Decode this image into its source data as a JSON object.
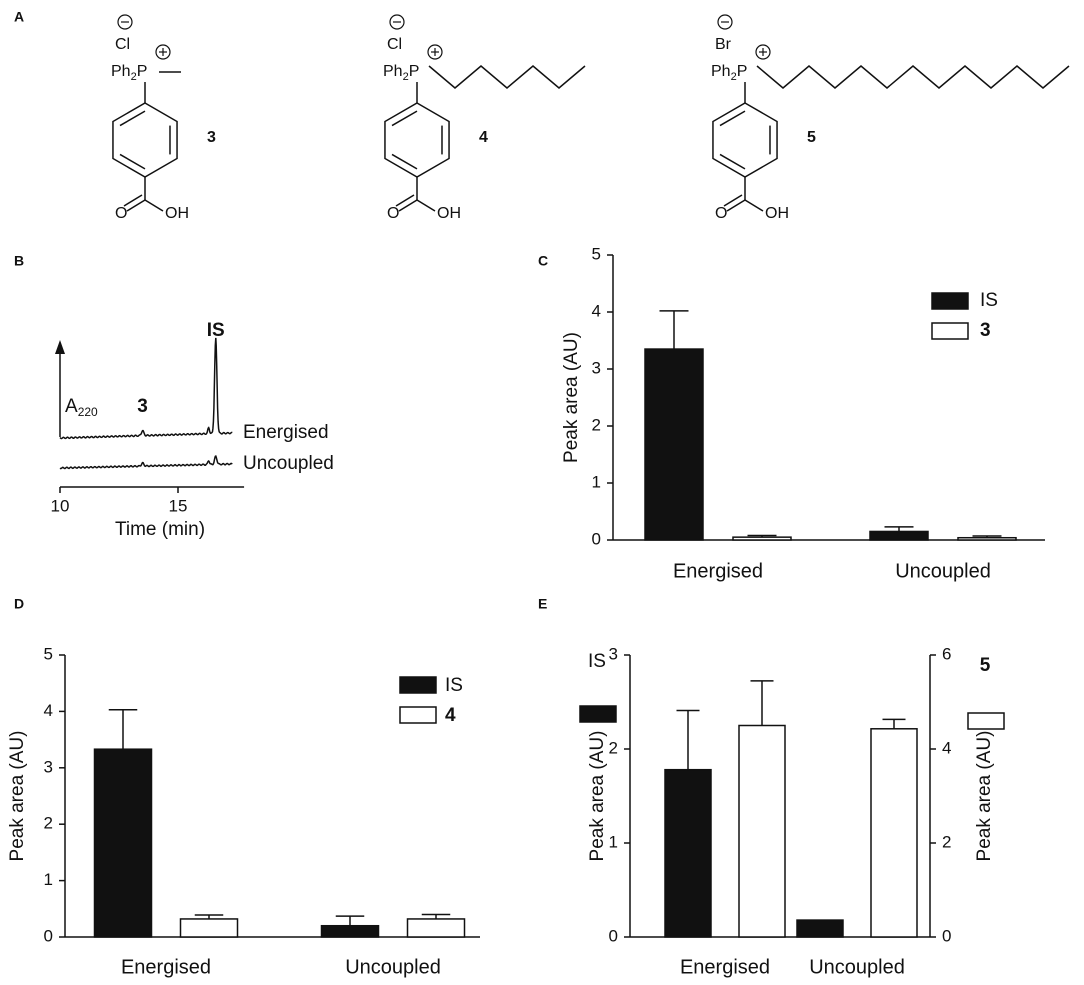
{
  "figure": {
    "panel_labels": [
      "A",
      "B",
      "C",
      "D",
      "E"
    ]
  },
  "structures": [
    {
      "anion": "Cl",
      "cation": [
        "Ph",
        "2",
        "P"
      ],
      "carbonyl": "O",
      "hydroxyl": "OH",
      "label": "3"
    },
    {
      "anion": "Cl",
      "cation": [
        "Ph",
        "2",
        "P"
      ],
      "carbonyl": "O",
      "hydroxyl": "OH",
      "label": "4"
    },
    {
      "anion": "Br",
      "cation": [
        "Ph",
        "2",
        "P"
      ],
      "carbonyl": "O",
      "hydroxyl": "OH",
      "label": "5"
    }
  ],
  "chart_data": [
    {
      "type": "chromatogram",
      "xlabel": "Time (min)",
      "ylabel": [
        "A",
        "220"
      ],
      "xlim": [
        10,
        17.8
      ],
      "xticks": [
        10,
        15
      ],
      "peaks": [
        {
          "label": "3",
          "x": 13.5
        },
        {
          "label": "IS",
          "x": 16.6
        }
      ],
      "series": [
        {
          "name": "Energised"
        },
        {
          "name": "Uncoupled"
        }
      ]
    },
    {
      "type": "bar",
      "ylabel": "Peak area (AU)",
      "categories": [
        "Energised",
        "Uncoupled"
      ],
      "ylim": [
        0,
        5
      ],
      "yticks": [
        0,
        1,
        2,
        3,
        4,
        5
      ],
      "series": [
        {
          "name": "IS",
          "color": "#111111",
          "values": [
            3.35,
            0.15
          ],
          "errors": [
            0.67,
            0.08
          ]
        },
        {
          "name": "3",
          "color": "#ffffff",
          "values": [
            0.05,
            0.04
          ],
          "errors": [
            0.03,
            0.03
          ]
        }
      ]
    },
    {
      "type": "bar",
      "ylabel": "Peak area (AU)",
      "categories": [
        "Energised",
        "Uncoupled"
      ],
      "ylim": [
        0,
        5
      ],
      "yticks": [
        0,
        1,
        2,
        3,
        4,
        5
      ],
      "series": [
        {
          "name": "IS",
          "color": "#111111",
          "values": [
            3.33,
            0.2
          ],
          "errors": [
            0.7,
            0.17
          ]
        },
        {
          "name": "4",
          "color": "#ffffff",
          "values": [
            0.32,
            0.32
          ],
          "errors": [
            0.07,
            0.08
          ]
        }
      ]
    },
    {
      "type": "bar",
      "ylabel": "Peak area (AU)",
      "y2label": "Peak area (AU)",
      "categories": [
        "Energised",
        "Uncoupled"
      ],
      "ylim": [
        0,
        3
      ],
      "yticks": [
        0,
        1,
        2,
        3
      ],
      "y2lim": [
        0,
        6
      ],
      "y2ticks": [
        0,
        2,
        4,
        6
      ],
      "series": [
        {
          "name": "IS",
          "color": "#111111",
          "values": [
            1.78,
            0.18
          ],
          "errors": [
            0.63,
            null
          ]
        },
        {
          "name": "5",
          "color": "#ffffff",
          "axis": "y2",
          "values": [
            4.5,
            4.43
          ],
          "errors": [
            0.95,
            0.2
          ]
        }
      ]
    }
  ]
}
